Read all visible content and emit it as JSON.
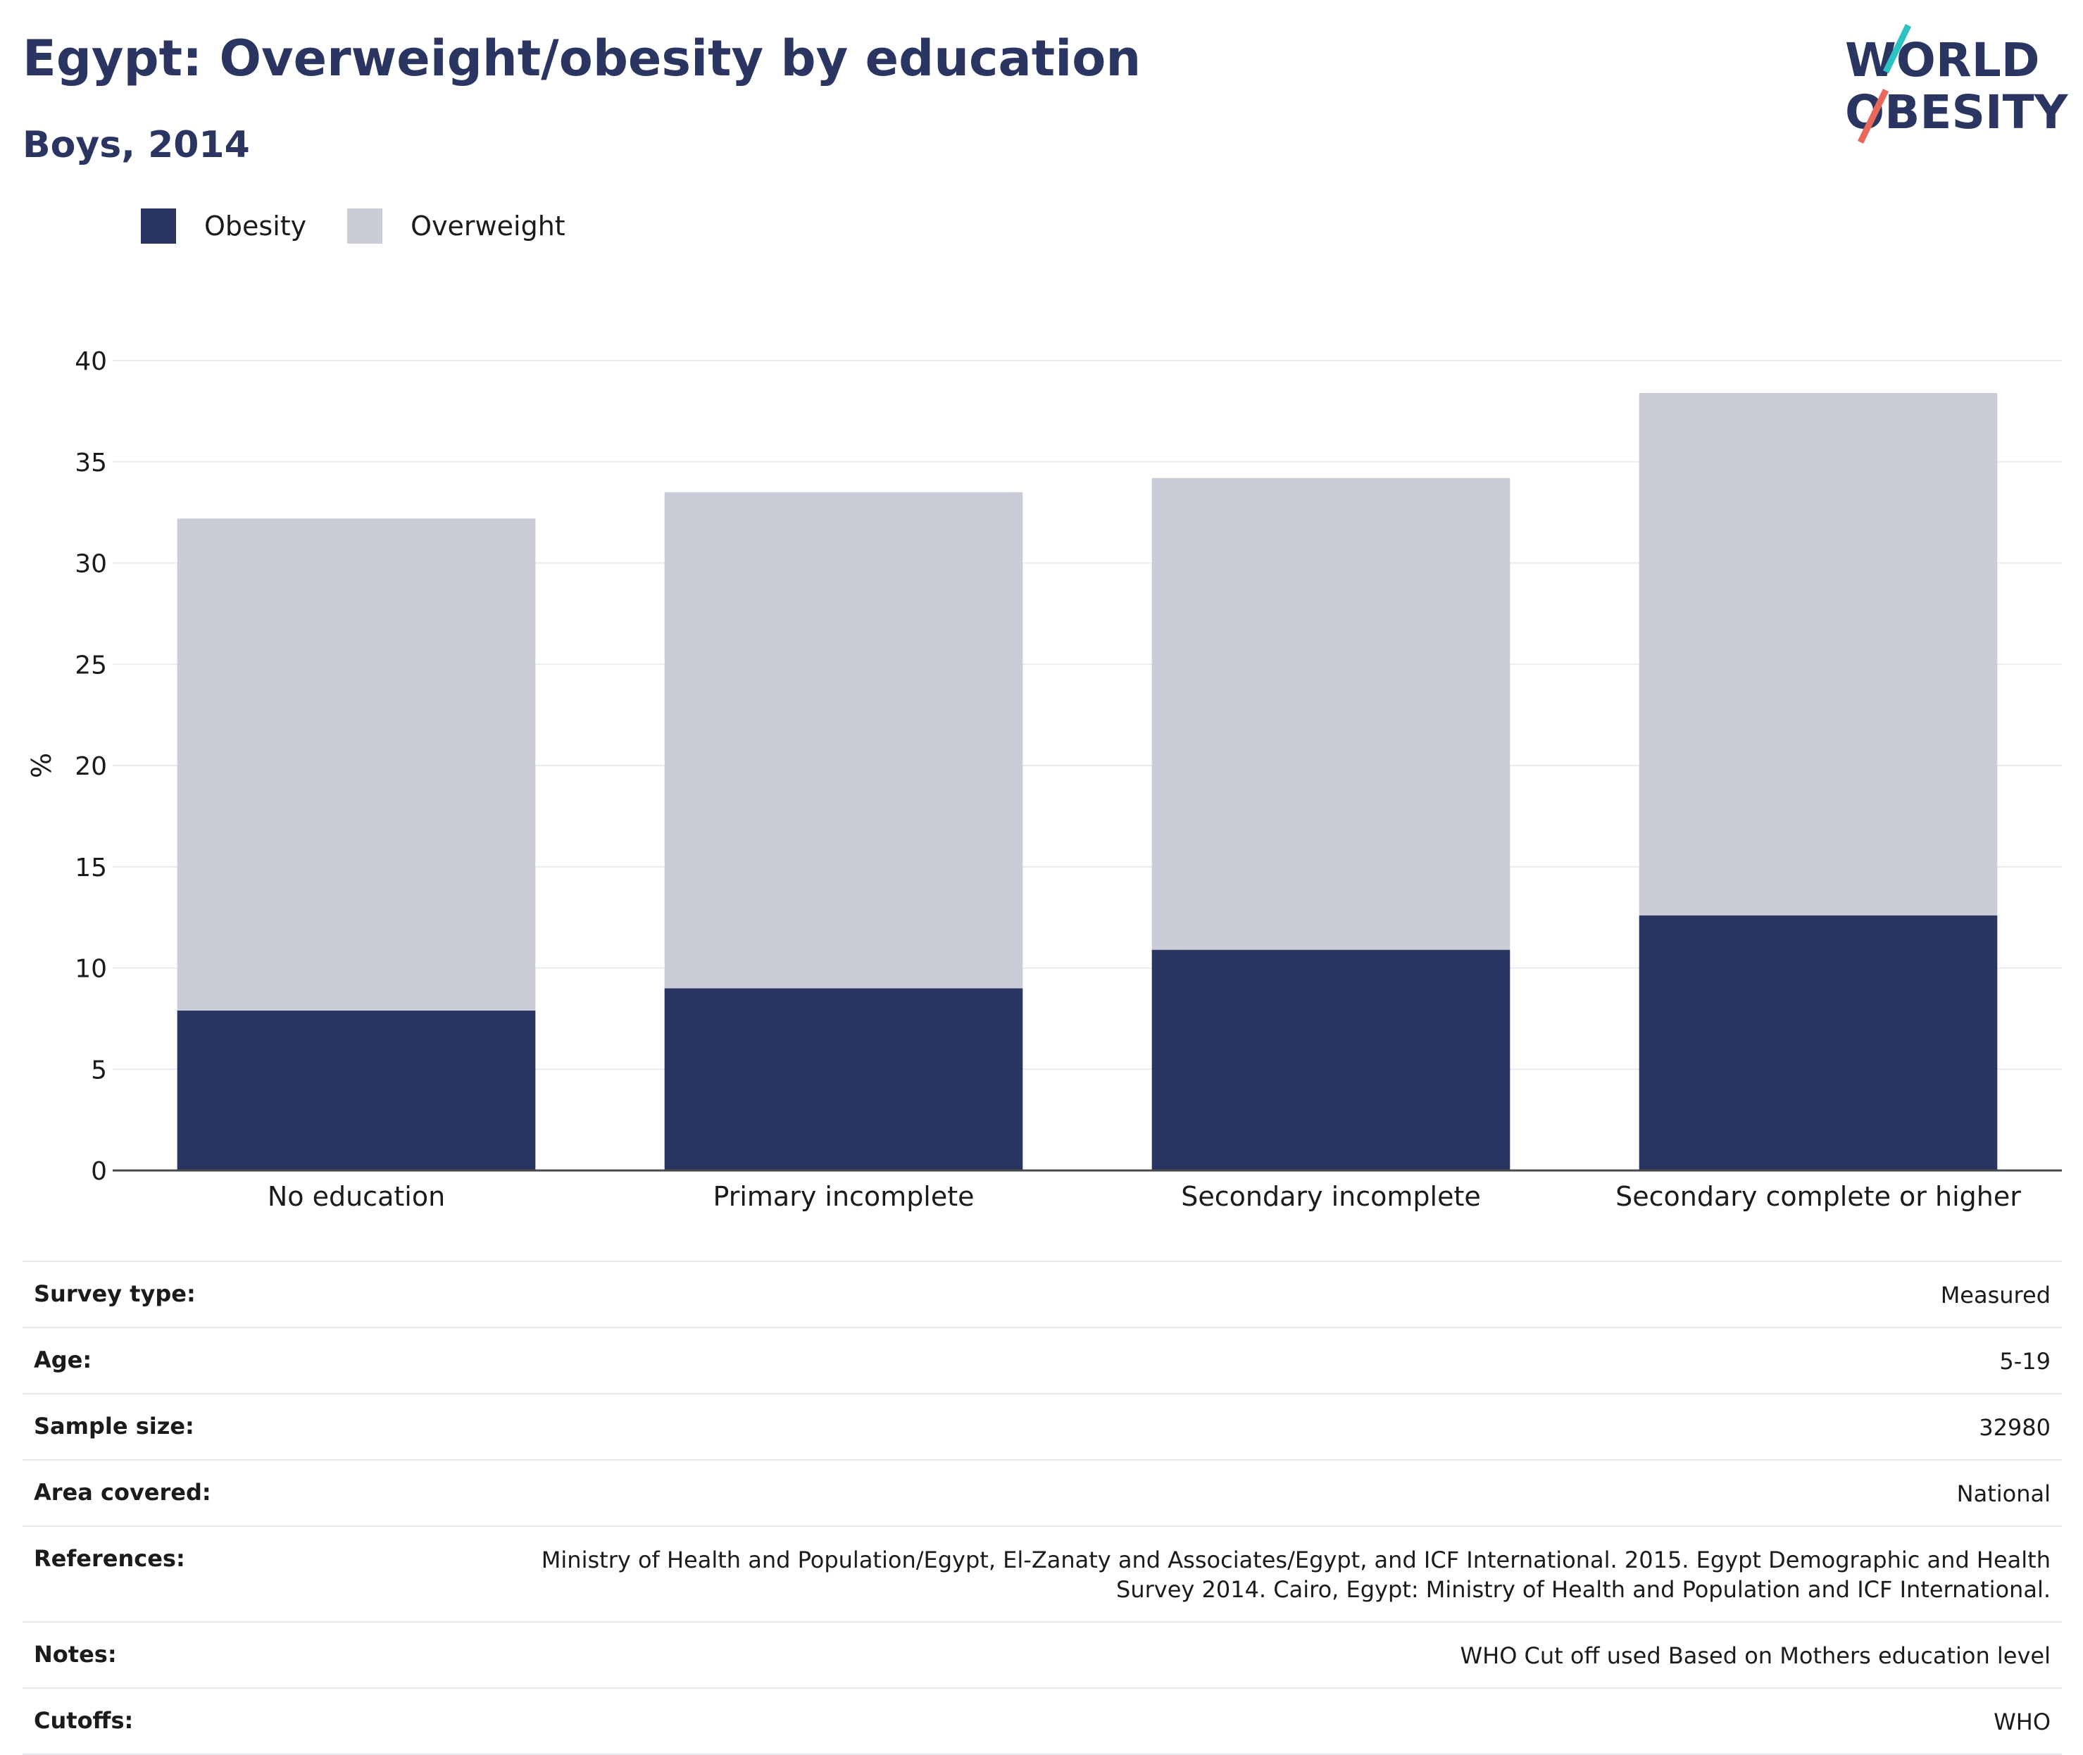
{
  "title": "Egypt: Overweight/obesity by education",
  "subtitle": "Boys, 2014",
  "logo": {
    "line1": "WORLD",
    "line2": "OBESITY",
    "accent_colors": [
      "#2cc2c2",
      "#e8685a"
    ]
  },
  "colors": {
    "obesity": "#2a3561",
    "overweight": "#cacdd8",
    "text": "#2a3561"
  },
  "legend": [
    {
      "label": "Obesity",
      "color": "#2a3561"
    },
    {
      "label": "Overweight",
      "color": "#cacdd8"
    }
  ],
  "chart_data": {
    "type": "bar",
    "stacked": true,
    "categories": [
      "No education",
      "Primary incomplete",
      "Secondary incomplete",
      "Secondary complete or higher"
    ],
    "series": [
      {
        "name": "Obesity",
        "values": [
          7.9,
          9.0,
          10.9,
          12.6
        ]
      },
      {
        "name": "Overweight",
        "values": [
          24.3,
          24.5,
          23.3,
          25.8
        ]
      }
    ],
    "xlabel": "",
    "ylabel": "%",
    "ylim": [
      0,
      40
    ],
    "yticks": [
      0,
      5,
      10,
      15,
      20,
      25,
      30,
      35,
      40
    ],
    "grid": true,
    "legend_position": "top-left"
  },
  "metadata": [
    {
      "label": "Survey type:",
      "value": "Measured"
    },
    {
      "label": "Age:",
      "value": "5-19"
    },
    {
      "label": "Sample size:",
      "value": "32980"
    },
    {
      "label": "Area covered:",
      "value": "National"
    },
    {
      "label": "References:",
      "value": "Ministry of Health and Population/Egypt, El-Zanaty and Associates/Egypt, and ICF International. 2015. Egypt Demographic and Health Survey 2014. Cairo, Egypt: Ministry of Health and Population and ICF International."
    },
    {
      "label": "Notes:",
      "value": "WHO Cut off used Based on Mothers education level"
    },
    {
      "label": "Cutoffs:",
      "value": "WHO"
    }
  ]
}
